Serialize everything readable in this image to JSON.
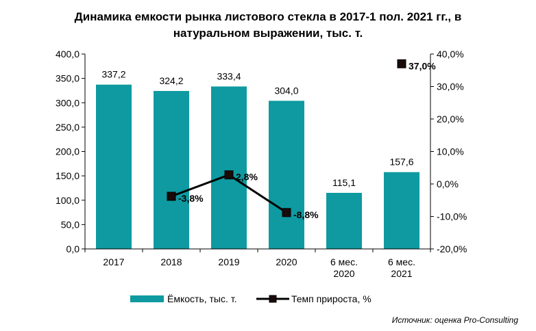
{
  "chart_data": {
    "type": "bar",
    "title_lines": [
      "Динамика емкости рынка листового стекла в 2017-1 пол. 2021 гг., в",
      "натуральном выражении, тыс. т."
    ],
    "categories": [
      [
        "2017"
      ],
      [
        "2018"
      ],
      [
        "2019"
      ],
      [
        "2020"
      ],
      [
        "6 мес.",
        "2020"
      ],
      [
        "6 мес.",
        "2021"
      ]
    ],
    "series": [
      {
        "name": "Ёмкость, тыс. т.",
        "kind": "bar",
        "axis": "left",
        "color": "#0e9aa0",
        "values": [
          337.2,
          324.2,
          333.4,
          304.0,
          115.1,
          157.6
        ],
        "labels": [
          "337,2",
          "324,2",
          "333,4",
          "304,0",
          "115,1",
          "157,6"
        ]
      },
      {
        "name": "Темп прироста, %",
        "kind": "line",
        "axis": "right",
        "color": "#000000",
        "values": [
          null,
          -3.8,
          2.8,
          -8.8,
          null,
          37.0
        ],
        "labels": [
          null,
          "-3,8%",
          "2,8%",
          "-8,8%",
          null,
          "37,0%"
        ],
        "connect": [
          1,
          2,
          3
        ]
      }
    ],
    "y_left": {
      "ylim": [
        0,
        400
      ],
      "ticks": [
        "0,0",
        "50,0",
        "100,0",
        "150,0",
        "200,0",
        "250,0",
        "300,0",
        "350,0",
        "400,0"
      ]
    },
    "y_right": {
      "ylim": [
        -20,
        40
      ],
      "ticks": [
        "-20,0%",
        "-10,0%",
        "0,0%",
        "10,0%",
        "20,0%",
        "30,0%",
        "40,0%"
      ]
    },
    "grid": false,
    "legend_position": "bottom"
  },
  "source_note": "Источник: оценка Pro-Consulting"
}
